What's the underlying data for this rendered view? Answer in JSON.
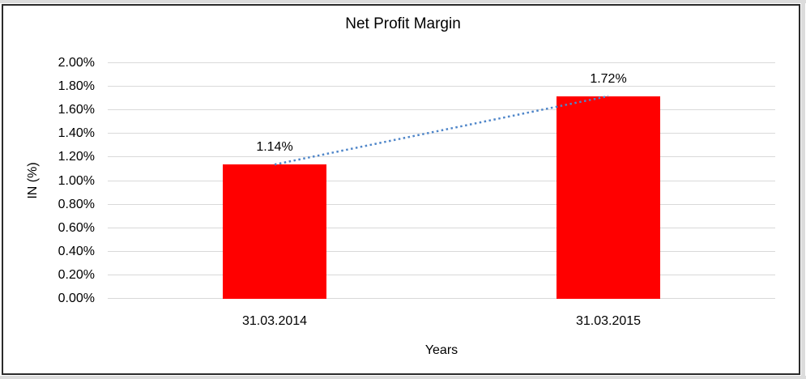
{
  "chart_data": {
    "type": "bar",
    "title": "Net Profit Margin",
    "xlabel": "Years",
    "ylabel": "IN (%)",
    "categories": [
      "31.03.2014",
      "31.03.2015"
    ],
    "values": [
      1.14,
      1.72
    ],
    "data_labels": [
      "1.14%",
      "1.72%"
    ],
    "ylim": [
      0,
      2
    ],
    "ytick_step": 0.2,
    "ytick_labels": [
      "0.00%",
      "0.20%",
      "0.40%",
      "0.60%",
      "0.80%",
      "1.00%",
      "1.20%",
      "1.40%",
      "1.60%",
      "1.80%",
      "2.00%"
    ],
    "grid": true,
    "legend": "none",
    "bar_color": "#FF0000",
    "gridline_color": "#D9D9D9",
    "trendline": {
      "style": "dotted",
      "color": "#4F86C9",
      "from": {
        "category_index": 0,
        "value": 1.14
      },
      "to": {
        "category_index": 1,
        "value": 1.72
      }
    }
  }
}
